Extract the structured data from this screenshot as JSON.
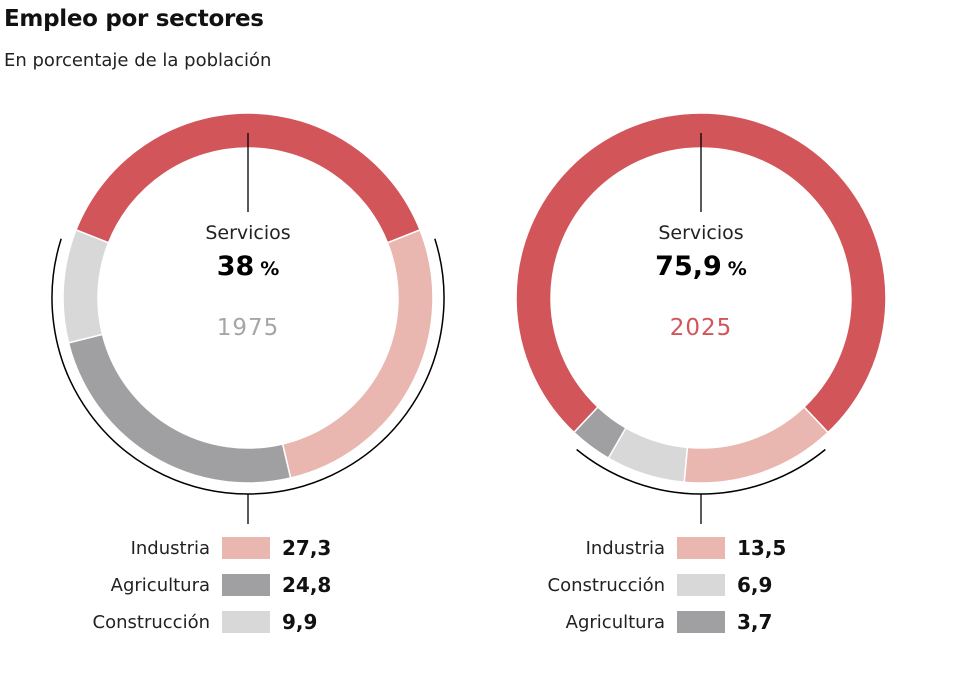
{
  "header": {
    "title": "Empleo por sectores",
    "subtitle": "En porcentaje de la población"
  },
  "colors": {
    "servicios": "#d2555a",
    "industria": "#e9b7b0",
    "agricultura": "#a09fa1",
    "construccion": "#d9d8d9",
    "year_1975": "#a6a6a6",
    "year_2025": "#d2555a"
  },
  "chart_data": [
    {
      "type": "pie",
      "title": "1975",
      "unit": "%",
      "center_label": "Servicios",
      "center_value": "38",
      "slices": [
        {
          "name": "Servicios",
          "value": 38,
          "key": "servicios"
        },
        {
          "name": "Industria",
          "value": 27.3,
          "key": "industria"
        },
        {
          "name": "Agricultura",
          "value": 24.8,
          "key": "agricultura"
        },
        {
          "name": "Construcción",
          "value": 9.9,
          "key": "construccion"
        }
      ],
      "legend": [
        {
          "label": "Industria",
          "value": "27,3",
          "key": "industria"
        },
        {
          "label": "Agricultura",
          "value": "24,8",
          "key": "agricultura"
        },
        {
          "label": "Construcción",
          "value": "9,9",
          "key": "construccion"
        }
      ]
    },
    {
      "type": "pie",
      "title": "2025",
      "unit": "%",
      "center_label": "Servicios",
      "center_value": "75,9",
      "slices": [
        {
          "name": "Servicios",
          "value": 75.9,
          "key": "servicios"
        },
        {
          "name": "Industria",
          "value": 13.5,
          "key": "industria"
        },
        {
          "name": "Construcción",
          "value": 6.9,
          "key": "construccion"
        },
        {
          "name": "Agricultura",
          "value": 3.7,
          "key": "agricultura"
        }
      ],
      "legend": [
        {
          "label": "Industria",
          "value": "13,5",
          "key": "industria"
        },
        {
          "label": "Construcción",
          "value": "6,9",
          "key": "construccion"
        },
        {
          "label": "Agricultura",
          "value": "3,7",
          "key": "agricultura"
        }
      ]
    }
  ]
}
